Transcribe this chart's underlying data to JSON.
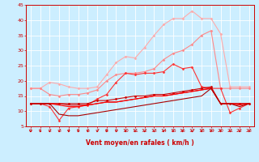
{
  "x": [
    0,
    1,
    2,
    3,
    4,
    5,
    6,
    7,
    8,
    9,
    10,
    11,
    12,
    13,
    14,
    15,
    16,
    17,
    18,
    19,
    20,
    21,
    22,
    23
  ],
  "background_color": "#cceeff",
  "grid_color": "#ffffff",
  "lines": [
    {
      "color": "#ffaaaa",
      "alpha": 1.0,
      "lw": 0.8,
      "marker": "D",
      "markersize": 1.5,
      "y": [
        17.5,
        17.5,
        19.5,
        19.0,
        18.0,
        17.5,
        17.5,
        18.0,
        22.0,
        26.0,
        28.0,
        27.5,
        31.0,
        35.0,
        38.5,
        40.5,
        40.5,
        43.0,
        40.5,
        40.5,
        35.5,
        18.0,
        18.0,
        18.0
      ]
    },
    {
      "color": "#ff8888",
      "alpha": 1.0,
      "lw": 0.8,
      "marker": "D",
      "markersize": 1.5,
      "y": [
        17.5,
        17.5,
        15.5,
        15.0,
        15.5,
        15.5,
        16.0,
        17.0,
        20.0,
        22.0,
        22.5,
        22.5,
        23.0,
        24.0,
        27.0,
        29.0,
        30.0,
        32.0,
        35.0,
        36.5,
        17.5,
        17.5,
        17.5,
        17.5
      ]
    },
    {
      "color": "#ff3333",
      "alpha": 1.0,
      "lw": 0.8,
      "marker": "D",
      "markersize": 1.5,
      "y": [
        12.5,
        12.5,
        11.5,
        7.0,
        11.0,
        11.5,
        12.0,
        14.0,
        15.5,
        19.5,
        22.5,
        22.0,
        22.5,
        22.5,
        23.0,
        25.5,
        24.0,
        24.5,
        18.0,
        17.5,
        17.5,
        9.5,
        11.0,
        12.5
      ]
    },
    {
      "color": "#cc0000",
      "alpha": 1.0,
      "lw": 0.8,
      "marker": "D",
      "markersize": 1.5,
      "y": [
        12.5,
        12.5,
        12.5,
        12.5,
        12.5,
        12.5,
        12.5,
        13.5,
        13.5,
        14.0,
        14.5,
        15.0,
        15.0,
        15.5,
        15.5,
        16.0,
        16.5,
        17.0,
        17.5,
        18.0,
        12.5,
        12.5,
        12.5,
        12.5
      ]
    },
    {
      "color": "#dd0000",
      "alpha": 1.0,
      "lw": 0.8,
      "marker": null,
      "markersize": 0,
      "y": [
        12.5,
        12.5,
        12.5,
        12.5,
        12.0,
        12.0,
        12.0,
        12.5,
        13.0,
        13.0,
        13.5,
        14.0,
        14.5,
        15.0,
        15.0,
        15.5,
        16.0,
        16.5,
        17.0,
        17.5,
        12.5,
        12.5,
        12.5,
        12.5
      ]
    },
    {
      "color": "#ff0000",
      "alpha": 1.0,
      "lw": 0.8,
      "marker": null,
      "markersize": 0,
      "y": [
        12.5,
        12.5,
        12.5,
        12.0,
        11.5,
        11.5,
        12.0,
        12.5,
        13.0,
        13.0,
        13.5,
        14.0,
        14.5,
        15.0,
        15.0,
        15.5,
        16.0,
        16.5,
        17.0,
        17.5,
        12.5,
        12.5,
        12.0,
        12.5
      ]
    },
    {
      "color": "#aa0000",
      "alpha": 1.0,
      "lw": 0.8,
      "marker": null,
      "markersize": 0,
      "y": [
        12.5,
        12.5,
        12.5,
        9.0,
        8.5,
        8.5,
        9.0,
        9.5,
        10.0,
        10.5,
        11.0,
        11.5,
        12.0,
        12.5,
        13.0,
        13.5,
        14.0,
        14.5,
        15.0,
        17.5,
        12.5,
        12.5,
        11.5,
        12.5
      ]
    }
  ],
  "xlabel": "Vent moyen/en rafales ( km/h )",
  "xlim": [
    -0.5,
    23.5
  ],
  "ylim": [
    5,
    45
  ],
  "yticks": [
    5,
    10,
    15,
    20,
    25,
    30,
    35,
    40,
    45
  ],
  "xticks": [
    0,
    1,
    2,
    3,
    4,
    5,
    6,
    7,
    8,
    9,
    10,
    11,
    12,
    13,
    14,
    15,
    16,
    17,
    18,
    19,
    20,
    21,
    22,
    23
  ],
  "arrow_color": "#cc0000",
  "axis_color": "#cc0000",
  "tick_color": "#cc0000",
  "label_fontsize": 5.5,
  "tick_fontsize": 4.5
}
